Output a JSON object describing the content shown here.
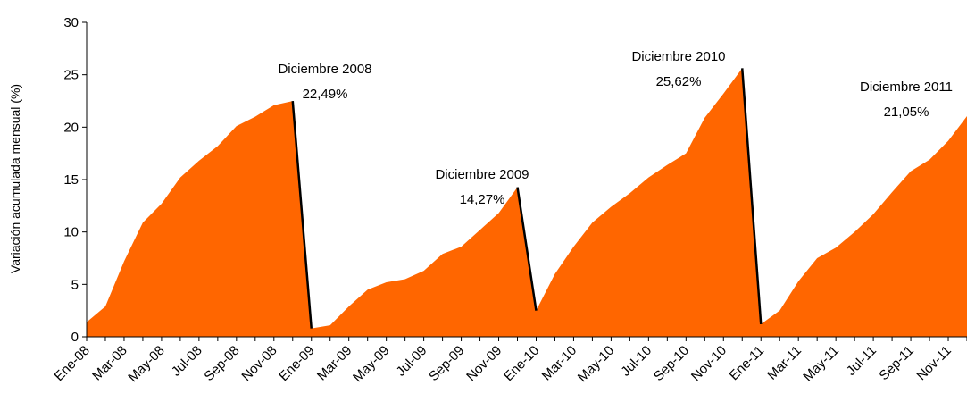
{
  "chart_data": {
    "type": "area",
    "y_label": "Variación acumulada mensual (%)",
    "categories": [
      "Ene-08",
      null,
      "Mar-08",
      null,
      "May-08",
      null,
      "Jul-08",
      null,
      "Sep-08",
      null,
      "Nov-08",
      null,
      "Ene-09",
      null,
      "Mar-09",
      null,
      "May-09",
      null,
      "Jul-09",
      null,
      "Sep-09",
      null,
      "Nov-09",
      null,
      "Ene-10",
      null,
      "Mar-10",
      null,
      "May-10",
      null,
      "Jul-10",
      null,
      "Sep-10",
      null,
      "Nov-10",
      null,
      "Ene-11",
      null,
      "Mar-11",
      null,
      "May-11",
      null,
      "Jul-11",
      null,
      "Sep-11",
      null,
      "Nov-11",
      null
    ],
    "values": [
      1.4,
      2.9,
      7.2,
      10.9,
      12.7,
      15.2,
      16.8,
      18.2,
      20.1,
      21.0,
      22.1,
      22.49,
      0.8,
      1.1,
      2.9,
      4.5,
      5.2,
      5.5,
      6.3,
      7.9,
      8.6,
      10.2,
      11.8,
      14.27,
      2.5,
      6.0,
      8.6,
      10.9,
      12.4,
      13.7,
      15.2,
      16.4,
      17.5,
      20.9,
      23.2,
      25.62,
      1.2,
      2.5,
      5.3,
      7.5,
      8.5,
      10.0,
      11.7,
      13.8,
      15.8,
      16.9,
      18.7,
      21.05
    ],
    "value_labels": [
      null,
      null,
      null,
      null,
      null,
      null,
      null,
      null,
      null,
      null,
      null,
      "22,49%",
      null,
      null,
      null,
      null,
      null,
      null,
      null,
      null,
      null,
      null,
      null,
      "14,27%",
      null,
      null,
      null,
      null,
      null,
      null,
      null,
      null,
      null,
      null,
      null,
      "25,62%",
      null,
      null,
      null,
      null,
      null,
      null,
      null,
      null,
      null,
      null,
      null,
      "21,05%"
    ],
    "annotations": [
      "Diciembre 2008",
      "Diciembre 2009",
      "Diciembre 2010",
      "Diciembre 2011"
    ],
    "color": "#ff6600",
    "ylim": [
      0,
      30
    ],
    "yticks": [
      0,
      5,
      10,
      15,
      20,
      25,
      30
    ]
  }
}
